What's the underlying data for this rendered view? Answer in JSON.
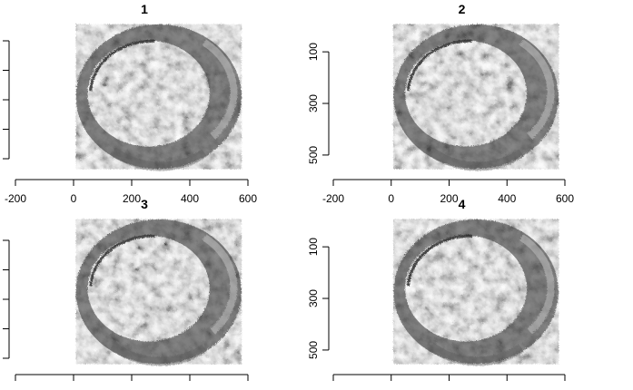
{
  "chart_data": [
    {
      "type": "heatmap",
      "title": "1",
      "xlabel": "",
      "ylabel": "",
      "xlim": [
        -200,
        600
      ],
      "ylim": [
        -20,
        560
      ],
      "xticks": [
        "-200",
        "0",
        "200",
        "400",
        "600"
      ],
      "yticks": [
        "",
        "",
        "",
        "",
        ""
      ],
      "ring": {
        "center": [
          290,
          270
        ],
        "outer_radius": [
          285,
          280
        ],
        "inner_radius": [
          210,
          205
        ],
        "inner_center": [
          255,
          258
        ]
      },
      "colormap": "grayscale"
    },
    {
      "type": "heatmap",
      "title": "2",
      "xlabel": "",
      "ylabel": "",
      "xlim": [
        -200,
        600
      ],
      "ylim": [
        -20,
        560
      ],
      "xticks": [
        "-200",
        "0",
        "200",
        "400",
        "600"
      ],
      "yticks": [
        "100",
        "300",
        "500"
      ],
      "ring": {
        "center": [
          290,
          270
        ],
        "outer_radius": [
          285,
          280
        ],
        "inner_radius": [
          210,
          205
        ],
        "inner_center": [
          255,
          258
        ]
      },
      "colormap": "grayscale"
    },
    {
      "type": "heatmap",
      "title": "3",
      "xlabel": "",
      "ylabel": "",
      "xlim": [
        -200,
        600
      ],
      "ylim": [
        -20,
        560
      ],
      "xticks": [
        "",
        "",
        "",
        "",
        ""
      ],
      "yticks": [
        "",
        "",
        "",
        "",
        ""
      ],
      "ring": {
        "center": [
          290,
          270
        ],
        "outer_radius": [
          285,
          280
        ],
        "inner_radius": [
          210,
          205
        ],
        "inner_center": [
          255,
          258
        ]
      },
      "colormap": "grayscale"
    },
    {
      "type": "heatmap",
      "title": "4",
      "xlabel": "",
      "ylabel": "",
      "xlim": [
        -200,
        600
      ],
      "ylim": [
        -20,
        560
      ],
      "xticks": [
        "",
        "",
        "",
        "",
        ""
      ],
      "yticks": [
        "100",
        "300",
        "500"
      ],
      "ring": {
        "center": [
          290,
          270
        ],
        "outer_radius": [
          285,
          280
        ],
        "inner_radius": [
          210,
          205
        ],
        "inner_center": [
          255,
          258
        ]
      },
      "colormap": "grayscale"
    }
  ]
}
